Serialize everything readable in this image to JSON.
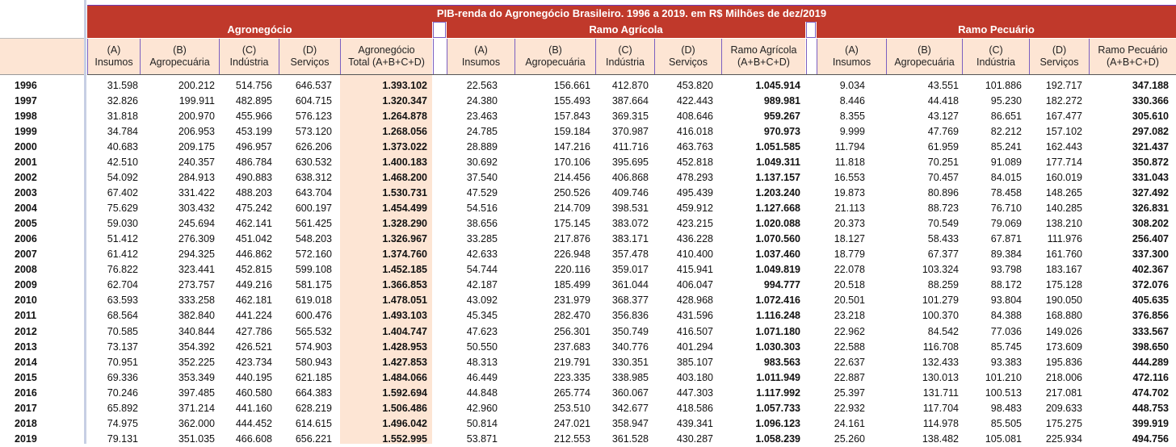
{
  "title": "PIB-renda do Agronegócio Brasileiro. 1996 a 2019. em R$ Milhões de dez/2019",
  "groups": {
    "agro": "Agronegócio",
    "agricola": "Ramo Agrícola",
    "pecuario": "Ramo Pecuário"
  },
  "headers": {
    "agro": [
      [
        "(A)",
        "Insumos"
      ],
      [
        "(B)",
        "Agropecuária"
      ],
      [
        "(C)",
        "Indústria"
      ],
      [
        "(D)",
        "Serviços"
      ],
      [
        "Agronegócio",
        "Total (A+B+C+D)"
      ]
    ],
    "agricola": [
      [
        "(A)",
        "Insumos"
      ],
      [
        "(B)",
        "Agropecuária"
      ],
      [
        "(C)",
        "Indústria"
      ],
      [
        "(D)",
        "Serviços"
      ],
      [
        "Ramo Agrícola",
        "(A+B+C+D)"
      ]
    ],
    "pecuario": [
      [
        "(A)",
        "Insumos"
      ],
      [
        "(B)",
        "Agropecuária"
      ],
      [
        "(C)",
        "Indústria"
      ],
      [
        "(D)",
        "Serviços"
      ],
      [
        "Ramo Pecuário",
        "(A+B+C+D)"
      ]
    ]
  },
  "rows": [
    [
      "1996",
      "31.598",
      "200.212",
      "514.756",
      "646.537",
      "1.393.102",
      "22.563",
      "156.661",
      "412.870",
      "453.820",
      "1.045.914",
      "9.034",
      "43.551",
      "101.886",
      "192.717",
      "347.188"
    ],
    [
      "1997",
      "32.826",
      "199.911",
      "482.895",
      "604.715",
      "1.320.347",
      "24.380",
      "155.493",
      "387.664",
      "422.443",
      "989.981",
      "8.446",
      "44.418",
      "95.230",
      "182.272",
      "330.366"
    ],
    [
      "1998",
      "31.818",
      "200.970",
      "455.966",
      "576.123",
      "1.264.878",
      "23.463",
      "157.843",
      "369.315",
      "408.646",
      "959.267",
      "8.355",
      "43.127",
      "86.651",
      "167.477",
      "305.610"
    ],
    [
      "1999",
      "34.784",
      "206.953",
      "453.199",
      "573.120",
      "1.268.056",
      "24.785",
      "159.184",
      "370.987",
      "416.018",
      "970.973",
      "9.999",
      "47.769",
      "82.212",
      "157.102",
      "297.082"
    ],
    [
      "2000",
      "40.683",
      "209.175",
      "496.957",
      "626.206",
      "1.373.022",
      "28.889",
      "147.216",
      "411.716",
      "463.763",
      "1.051.585",
      "11.794",
      "61.959",
      "85.241",
      "162.443",
      "321.437"
    ],
    [
      "2001",
      "42.510",
      "240.357",
      "486.784",
      "630.532",
      "1.400.183",
      "30.692",
      "170.106",
      "395.695",
      "452.818",
      "1.049.311",
      "11.818",
      "70.251",
      "91.089",
      "177.714",
      "350.872"
    ],
    [
      "2002",
      "54.092",
      "284.913",
      "490.883",
      "638.312",
      "1.468.200",
      "37.540",
      "214.456",
      "406.868",
      "478.293",
      "1.137.157",
      "16.553",
      "70.457",
      "84.015",
      "160.019",
      "331.043"
    ],
    [
      "2003",
      "67.402",
      "331.422",
      "488.203",
      "643.704",
      "1.530.731",
      "47.529",
      "250.526",
      "409.746",
      "495.439",
      "1.203.240",
      "19.873",
      "80.896",
      "78.458",
      "148.265",
      "327.492"
    ],
    [
      "2004",
      "75.629",
      "303.432",
      "475.242",
      "600.197",
      "1.454.499",
      "54.516",
      "214.709",
      "398.531",
      "459.912",
      "1.127.668",
      "21.113",
      "88.723",
      "76.710",
      "140.285",
      "326.831"
    ],
    [
      "2005",
      "59.030",
      "245.694",
      "462.141",
      "561.425",
      "1.328.290",
      "38.656",
      "175.145",
      "383.072",
      "423.215",
      "1.020.088",
      "20.373",
      "70.549",
      "79.069",
      "138.210",
      "308.202"
    ],
    [
      "2006",
      "51.412",
      "276.309",
      "451.042",
      "548.203",
      "1.326.967",
      "33.285",
      "217.876",
      "383.171",
      "436.228",
      "1.070.560",
      "18.127",
      "58.433",
      "67.871",
      "111.976",
      "256.407"
    ],
    [
      "2007",
      "61.412",
      "294.325",
      "446.862",
      "572.160",
      "1.374.760",
      "42.633",
      "226.948",
      "357.478",
      "410.400",
      "1.037.460",
      "18.779",
      "67.377",
      "89.384",
      "161.760",
      "337.300"
    ],
    [
      "2008",
      "76.822",
      "323.441",
      "452.815",
      "599.108",
      "1.452.185",
      "54.744",
      "220.116",
      "359.017",
      "415.941",
      "1.049.819",
      "22.078",
      "103.324",
      "93.798",
      "183.167",
      "402.367"
    ],
    [
      "2009",
      "62.704",
      "273.757",
      "449.216",
      "581.175",
      "1.366.853",
      "42.187",
      "185.499",
      "361.044",
      "406.047",
      "994.777",
      "20.518",
      "88.259",
      "88.172",
      "175.128",
      "372.076"
    ],
    [
      "2010",
      "63.593",
      "333.258",
      "462.181",
      "619.018",
      "1.478.051",
      "43.092",
      "231.979",
      "368.377",
      "428.968",
      "1.072.416",
      "20.501",
      "101.279",
      "93.804",
      "190.050",
      "405.635"
    ],
    [
      "2011",
      "68.564",
      "382.840",
      "441.224",
      "600.476",
      "1.493.103",
      "45.345",
      "282.470",
      "356.836",
      "431.596",
      "1.116.248",
      "23.218",
      "100.370",
      "84.388",
      "168.880",
      "376.856"
    ],
    [
      "2012",
      "70.585",
      "340.844",
      "427.786",
      "565.532",
      "1.404.747",
      "47.623",
      "256.301",
      "350.749",
      "416.507",
      "1.071.180",
      "22.962",
      "84.542",
      "77.036",
      "149.026",
      "333.567"
    ],
    [
      "2013",
      "73.137",
      "354.392",
      "426.521",
      "574.903",
      "1.428.953",
      "50.550",
      "237.683",
      "340.776",
      "401.294",
      "1.030.303",
      "22.588",
      "116.708",
      "85.745",
      "173.609",
      "398.650"
    ],
    [
      "2014",
      "70.951",
      "352.225",
      "423.734",
      "580.943",
      "1.427.853",
      "48.313",
      "219.791",
      "330.351",
      "385.107",
      "983.563",
      "22.637",
      "132.433",
      "93.383",
      "195.836",
      "444.289"
    ],
    [
      "2015",
      "69.336",
      "353.349",
      "440.195",
      "621.185",
      "1.484.066",
      "46.449",
      "223.335",
      "338.985",
      "403.180",
      "1.011.949",
      "22.887",
      "130.013",
      "101.210",
      "218.006",
      "472.116"
    ],
    [
      "2016",
      "70.246",
      "397.485",
      "460.580",
      "664.383",
      "1.592.694",
      "44.848",
      "265.774",
      "360.067",
      "447.303",
      "1.117.992",
      "25.397",
      "131.711",
      "100.513",
      "217.081",
      "474.702"
    ],
    [
      "2017",
      "65.892",
      "371.214",
      "441.160",
      "628.219",
      "1.506.486",
      "42.960",
      "253.510",
      "342.677",
      "418.586",
      "1.057.733",
      "22.932",
      "117.704",
      "98.483",
      "209.633",
      "448.753"
    ],
    [
      "2018",
      "74.975",
      "362.000",
      "444.452",
      "614.615",
      "1.496.042",
      "50.814",
      "247.021",
      "358.947",
      "439.341",
      "1.096.123",
      "24.161",
      "114.978",
      "85.505",
      "175.275",
      "399.919"
    ],
    [
      "2019",
      "79.131",
      "351.035",
      "466.608",
      "656.221",
      "1.552.995",
      "53.871",
      "212.553",
      "361.528",
      "430.287",
      "1.058.239",
      "25.260",
      "138.482",
      "105.081",
      "225.934",
      "494.756"
    ]
  ]
}
